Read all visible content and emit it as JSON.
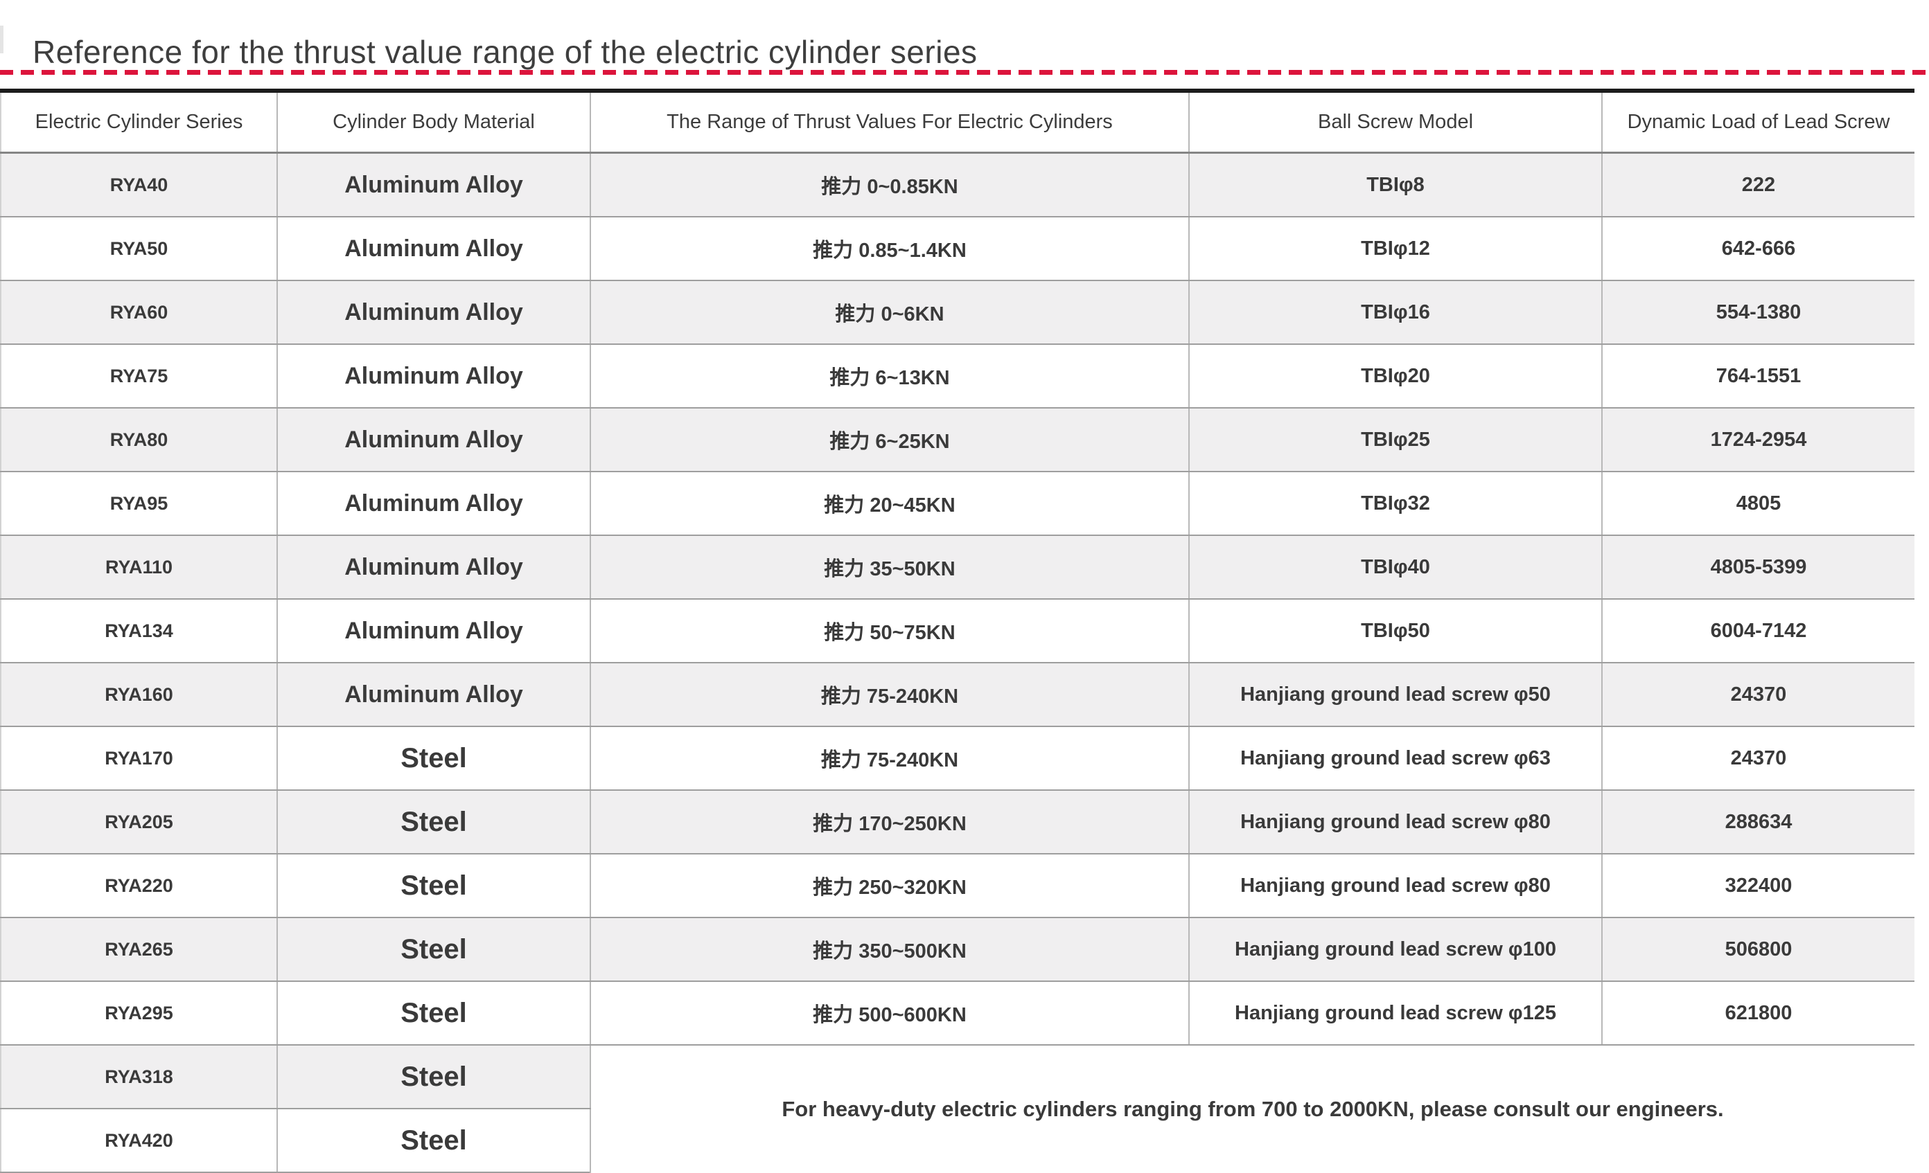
{
  "page": {
    "title": "Reference for the thrust value range of the electric cylinder series"
  },
  "colors": {
    "accent_red": "#dc143c",
    "row_stripe": "#f0eff0",
    "table_top_border": "#1c1c1c",
    "text": "#3b3b3b"
  },
  "table": {
    "columns": [
      {
        "key": "series",
        "label": "Electric Cylinder Series"
      },
      {
        "key": "material",
        "label": "Cylinder Body Material"
      },
      {
        "key": "thrust",
        "label": "The Range of Thrust Values For Electric Cylinders"
      },
      {
        "key": "screw",
        "label": "Ball Screw Model"
      },
      {
        "key": "load",
        "label": "Dynamic Load of Lead Screw"
      }
    ],
    "rows": [
      {
        "series": "RYA40",
        "material": "Aluminum Alloy",
        "thrust": "推力 0~0.85KN",
        "screw": "TBIφ8",
        "load": "222"
      },
      {
        "series": "RYA50",
        "material": "Aluminum Alloy",
        "thrust": "推力 0.85~1.4KN",
        "screw": "TBIφ12",
        "load": "642-666"
      },
      {
        "series": "RYA60",
        "material": "Aluminum Alloy",
        "thrust": "推力 0~6KN",
        "screw": "TBIφ16",
        "load": "554-1380"
      },
      {
        "series": "RYA75",
        "material": "Aluminum Alloy",
        "thrust": "推力 6~13KN",
        "screw": "TBIφ20",
        "load": "764-1551"
      },
      {
        "series": "RYA80",
        "material": "Aluminum Alloy",
        "thrust": "推力 6~25KN",
        "screw": "TBIφ25",
        "load": "1724-2954"
      },
      {
        "series": "RYA95",
        "material": "Aluminum Alloy",
        "thrust": "推力 20~45KN",
        "screw": "TBIφ32",
        "load": "4805"
      },
      {
        "series": "RYA110",
        "material": "Aluminum Alloy",
        "thrust": "推力 35~50KN",
        "screw": "TBIφ40",
        "load": "4805-5399"
      },
      {
        "series": "RYA134",
        "material": "Aluminum Alloy",
        "thrust": "推力 50~75KN",
        "screw": "TBIφ50",
        "load": "6004-7142"
      },
      {
        "series": "RYA160",
        "material": "Aluminum Alloy",
        "thrust": "推力 75-240KN",
        "screw": "Hanjiang ground lead screw φ50",
        "load": "24370"
      },
      {
        "series": "RYA170",
        "material": "Steel",
        "thrust": "推力 75-240KN",
        "screw": "Hanjiang ground lead screw φ63",
        "load": "24370"
      },
      {
        "series": "RYA205",
        "material": "Steel",
        "thrust": "推力 170~250KN",
        "screw": "Hanjiang ground lead screw φ80",
        "load": "288634"
      },
      {
        "series": "RYA220",
        "material": "Steel",
        "thrust": "推力 250~320KN",
        "screw": "Hanjiang ground lead screw φ80",
        "load": "322400"
      },
      {
        "series": "RYA265",
        "material": "Steel",
        "thrust": "推力 350~500KN",
        "screw": "Hanjiang ground lead screw φ100",
        "load": "506800"
      },
      {
        "series": "RYA295",
        "material": "Steel",
        "thrust": "推力 500~600KN",
        "screw": "Hanjiang ground lead screw φ125",
        "load": "621800"
      },
      {
        "series": "RYA318",
        "material": "Steel"
      },
      {
        "series": "RYA420",
        "material": "Steel"
      }
    ],
    "note": "For heavy-duty electric cylinders ranging from 700 to 2000KN, please consult our engineers."
  }
}
